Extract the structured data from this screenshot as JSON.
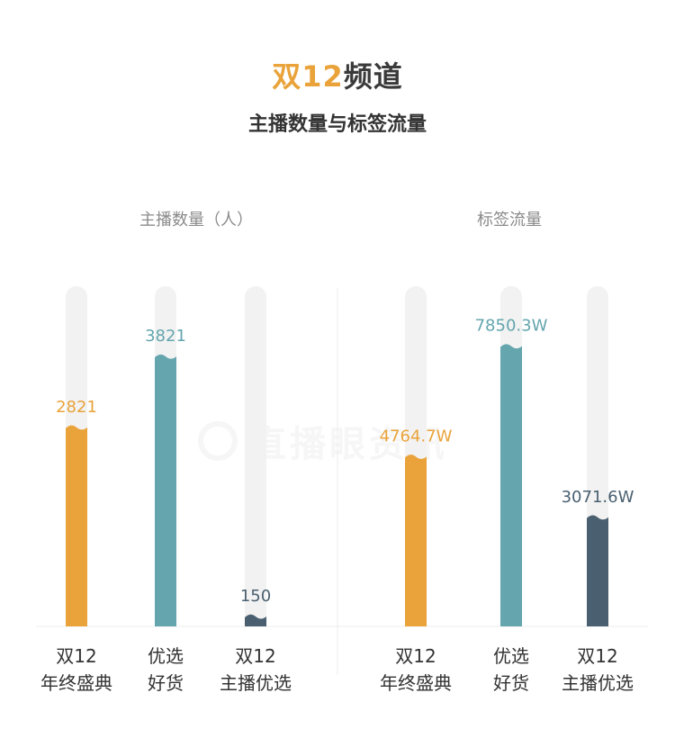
{
  "header": {
    "title_accent": "双12",
    "title_rest": "频道",
    "subtitle": "主播数量与标签流量"
  },
  "watermark": {
    "text": "直播眼资讯"
  },
  "colors": {
    "orange": "#E9A33A",
    "teal": "#64A5AE",
    "slate": "#4A6070",
    "track": "#F2F2F2"
  },
  "chart_data": [
    {
      "type": "bar",
      "title": "主播数量（人）",
      "categories": [
        "双12\n年终盛典",
        "优选\n好货",
        "双12\n主播优选"
      ],
      "values": [
        2821,
        3821,
        150
      ],
      "value_labels": [
        "2821",
        "3821",
        "150"
      ],
      "colors": [
        "#E9A33A",
        "#64A5AE",
        "#4A6070"
      ],
      "ylim": [
        0,
        4800
      ]
    },
    {
      "type": "bar",
      "title": "标签流量",
      "categories": [
        "双12\n年终盛典",
        "优选\n好货",
        "双12\n主播优选"
      ],
      "values": [
        4764.7,
        7850.3,
        3071.6
      ],
      "value_labels": [
        "4764.7W",
        "7850.3W",
        "3071.6W"
      ],
      "colors": [
        "#E9A33A",
        "#64A5AE",
        "#4A6070"
      ],
      "ylim": [
        0,
        9500
      ]
    }
  ]
}
